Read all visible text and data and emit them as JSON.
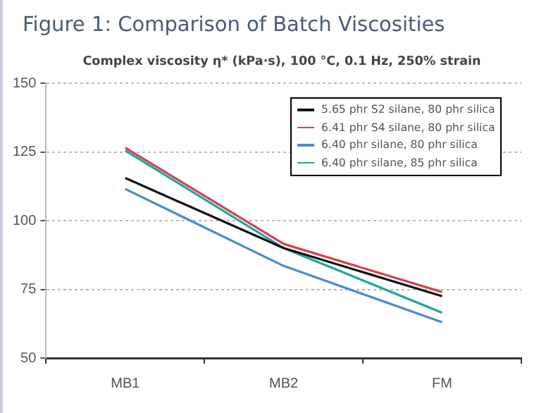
{
  "chart_data": {
    "type": "line",
    "title": "Figure 1: Comparison of Batch Viscosities",
    "subtitle": "Complex viscosity η* (kPa·s), 100 °C, 0.1 Hz, 250% strain",
    "categories": [
      "MB1",
      "MB2",
      "FM"
    ],
    "series": [
      {
        "name": "5.65 phr S2 silane, 80 phr silica",
        "color": "#111111",
        "values": [
          115.5,
          90,
          72.5
        ]
      },
      {
        "name": "6.41 phr S4 silane, 80 phr silica",
        "color": "#d9404f",
        "values": [
          126.5,
          91.5,
          74
        ]
      },
      {
        "name": "6.40 phr silane, 80 phr silica",
        "color": "#4a8ad6",
        "values": [
          111.5,
          83.5,
          63
        ]
      },
      {
        "name": "6.40 phr silane, 85 phr silica",
        "color": "#1aa898",
        "values": [
          125.5,
          90,
          66.5
        ]
      }
    ],
    "ylim": [
      50,
      150
    ],
    "yticks": [
      50,
      75,
      100,
      125,
      150
    ],
    "grid": "y",
    "legend": "top right",
    "marker": "none",
    "line_style": "solid"
  }
}
